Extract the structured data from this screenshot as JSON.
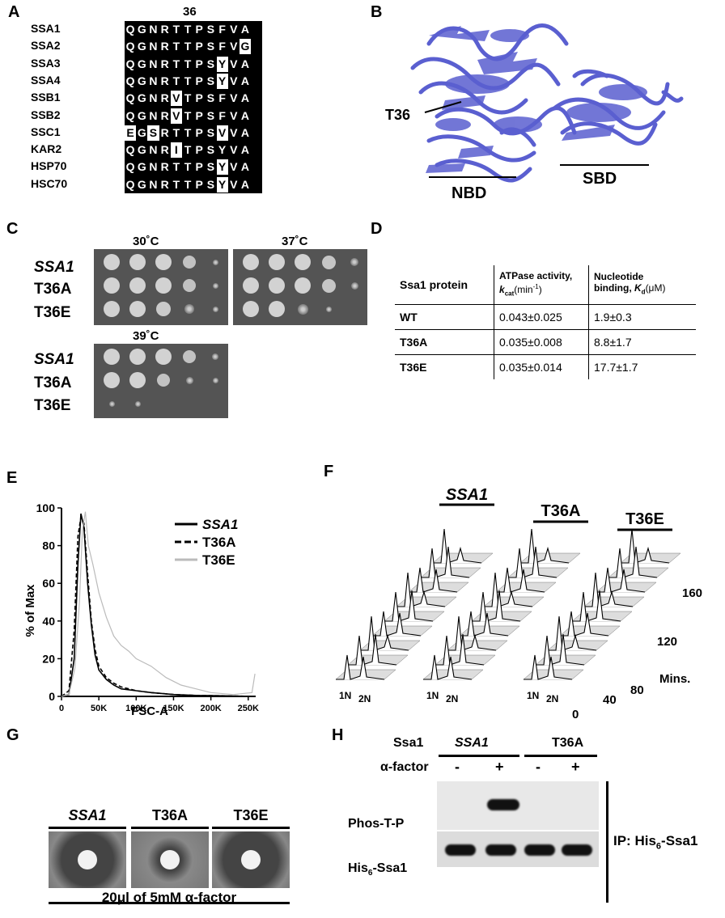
{
  "panels": {
    "A": "A",
    "B": "B",
    "C": "C",
    "D": "D",
    "E": "E",
    "F": "F",
    "G": "G",
    "H": "H"
  },
  "panel_a": {
    "position_label": "36",
    "sequences": [
      {
        "name": "SSA1",
        "residues": "QGNRTTPSFVA",
        "white": []
      },
      {
        "name": "SSA2",
        "residues": "QGNRTTPSFVG",
        "white": [
          10
        ]
      },
      {
        "name": "SSA3",
        "residues": "QGNRTTPSYVA",
        "white": [
          8
        ]
      },
      {
        "name": "SSA4",
        "residues": "QGNRTTPSYVA",
        "white": [
          8
        ]
      },
      {
        "name": "SSB1",
        "residues": "QGNRVTPSFVA",
        "white": [
          4
        ]
      },
      {
        "name": "SSB2",
        "residues": "QGNRVTPSFVA",
        "white": [
          4
        ]
      },
      {
        "name": "SSC1",
        "residues": "EGSRTTPSVVA",
        "white": [
          0,
          2,
          8
        ]
      },
      {
        "name": "KAR2",
        "residues": "QGNRITPSYVA",
        "white": [
          4
        ]
      },
      {
        "name": "HSP70",
        "residues": "QGNRTTPSYVA",
        "white": [
          8
        ]
      },
      {
        "name": "HSC70",
        "residues": "QGNRTTPSYVA",
        "white": [
          8
        ]
      }
    ]
  },
  "panel_b": {
    "site": "T36",
    "domain1": "NBD",
    "domain2": "SBD",
    "color": "#5a5fd0"
  },
  "panel_c": {
    "temps": [
      "30˚C",
      "37˚C",
      "39˚C"
    ],
    "strains": [
      "SSA1",
      "T36A",
      "T36E"
    ]
  },
  "panel_d": {
    "headers": [
      "Ssa1 protein",
      "ATPase activity, kcat (min-1)",
      "Nucleotide binding, Kd (μM)"
    ],
    "h1": "Ssa1 protein",
    "h2a": "ATPase activity,",
    "h2b_k": "k",
    "h2b_sub": "cat",
    "h2b_rest": "(min",
    "h2b_sup": "-1",
    "h2b_end": ")",
    "h3a": "Nucleotide",
    "h3b": "binding, ",
    "h3b_k": "K",
    "h3b_sub": "d",
    "h3b_rest": "(μM)",
    "rows": [
      {
        "protein": "WT",
        "atpase": "0.043±0.025",
        "binding": "1.9±0.3"
      },
      {
        "protein": "T36A",
        "atpase": "0.035±0.008",
        "binding": "8.8±1.7"
      },
      {
        "protein": "T36E",
        "atpase": "0.035±0.014",
        "binding": "17.7±1.7"
      }
    ]
  },
  "chart_data": [
    {
      "type": "line",
      "title": "",
      "xlabel": "FSC-A",
      "ylabel": "% of Max",
      "xlim": [
        0,
        260000
      ],
      "ylim": [
        0,
        100
      ],
      "xticks": [
        "0",
        "50K",
        "100K",
        "150K",
        "200K",
        "250K"
      ],
      "yticks": [
        "0",
        "20",
        "40",
        "60",
        "80",
        "100"
      ],
      "legend": "top-right",
      "series": [
        {
          "name": "SSA1",
          "style": "solid",
          "color": "#000000",
          "x": [
            0,
            10000,
            17000,
            22000,
            26000,
            30000,
            35000,
            40000,
            45000,
            50000,
            60000,
            70000,
            80000,
            100000,
            120000,
            150000,
            180000,
            220000,
            255000
          ],
          "y": [
            0,
            1,
            20,
            70,
            97,
            90,
            60,
            38,
            22,
            14,
            9,
            6,
            4,
            3,
            2,
            1,
            0.5,
            0.3,
            0
          ]
        },
        {
          "name": "T36A",
          "style": "dashed",
          "color": "#000000",
          "x": [
            0,
            10000,
            17000,
            22000,
            26000,
            30000,
            35000,
            40000,
            45000,
            50000,
            60000,
            70000,
            80000,
            100000,
            120000,
            150000,
            180000,
            220000,
            255000
          ],
          "y": [
            0,
            3,
            35,
            85,
            95,
            92,
            65,
            40,
            25,
            16,
            10,
            7,
            5,
            3,
            2,
            1,
            0.5,
            0.3,
            0
          ]
        },
        {
          "name": "T36E",
          "style": "solid",
          "color": "#bbbbbb",
          "x": [
            0,
            10000,
            18000,
            24000,
            28000,
            32000,
            36000,
            42000,
            50000,
            60000,
            70000,
            80000,
            90000,
            100000,
            120000,
            140000,
            160000,
            180000,
            200000,
            230000,
            255000,
            259000
          ],
          "y": [
            0,
            1,
            15,
            50,
            88,
            98,
            80,
            70,
            55,
            42,
            32,
            27,
            24,
            20,
            16,
            10,
            6,
            4,
            2,
            1,
            2,
            12
          ]
        }
      ]
    }
  ],
  "panel_f": {
    "strains": [
      "SSA1",
      "T36A",
      "T36E"
    ],
    "times": [
      "160",
      "120",
      "80",
      "40",
      "0"
    ],
    "time_unit": "Mins.",
    "x1n": "1N",
    "x2n": "2N"
  },
  "panel_g": {
    "strains": [
      "SSA1",
      "T36A",
      "T36E"
    ],
    "caption": "20μl of 5mM α-factor"
  },
  "panel_h": {
    "ssa1_label": "Ssa1",
    "afactor_label": "α-factor",
    "strains": [
      "SSA1",
      "T36A"
    ],
    "lanes": [
      "-",
      "+",
      "-",
      "+"
    ],
    "rows": [
      "Phos-T-P",
      "His6-Ssa1"
    ],
    "his": "His",
    "his_sub": "6",
    "his_rest": "-Ssa1",
    "ip_label": "IP: His",
    "ip_sub": "6",
    "ip_rest": "-Ssa1"
  }
}
